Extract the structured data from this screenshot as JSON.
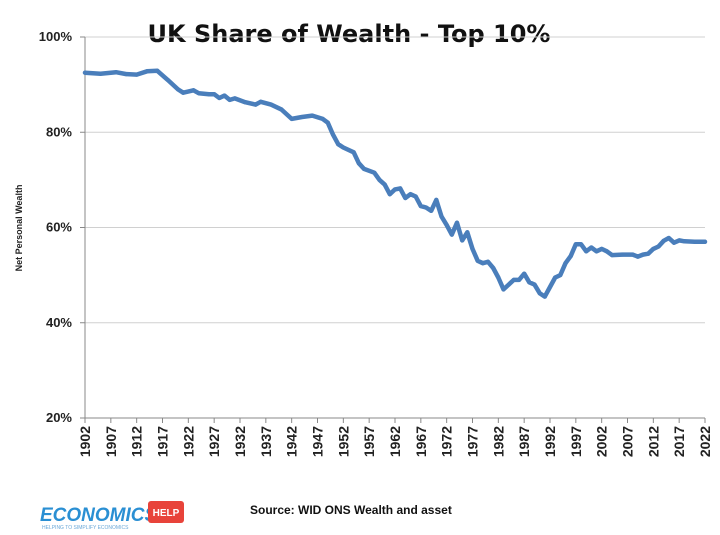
{
  "chart_data": {
    "type": "line",
    "title": "UK Share of Wealth - Top 10%",
    "ylabel": "Net Personal Wealth",
    "xlabel": "",
    "ylim": [
      20,
      100
    ],
    "xlim": [
      1902,
      2022
    ],
    "y_ticks": [
      "20%",
      "40%",
      "60%",
      "80%",
      "100%"
    ],
    "y_tick_values": [
      20,
      40,
      60,
      80,
      100
    ],
    "x_ticks": [
      "1902",
      "1907",
      "1912",
      "1917",
      "1922",
      "1927",
      "1932",
      "1937",
      "1942",
      "1947",
      "1952",
      "1957",
      "1962",
      "1967",
      "1972",
      "1977",
      "1982",
      "1987",
      "1992",
      "1997",
      "2002",
      "2007",
      "2012",
      "2017",
      "2022"
    ],
    "grid": "horizontal",
    "line_color": "#4a7ebb",
    "x": [
      1902,
      1905,
      1908,
      1910,
      1912,
      1914,
      1916,
      1918,
      1920,
      1921,
      1923,
      1924,
      1926,
      1927,
      1928,
      1929,
      1930,
      1931,
      1933,
      1935,
      1936,
      1938,
      1940,
      1942,
      1944,
      1946,
      1948,
      1949,
      1950,
      1951,
      1952,
      1954,
      1955,
      1956,
      1958,
      1959,
      1960,
      1961,
      1962,
      1963,
      1964,
      1965,
      1966,
      1967,
      1968,
      1969,
      1970,
      1971,
      1972,
      1973,
      1974,
      1975,
      1976,
      1977,
      1978,
      1979,
      1980,
      1981,
      1982,
      1983,
      1984,
      1985,
      1986,
      1987,
      1988,
      1989,
      1990,
      1991,
      1992,
      1993,
      1994,
      1995,
      1996,
      1997,
      1998,
      1999,
      2000,
      2001,
      2002,
      2003,
      2004,
      2006,
      2008,
      2009,
      2010,
      2011,
      2012,
      2013,
      2014,
      2015,
      2016,
      2017,
      2018,
      2020,
      2022
    ],
    "y": [
      92.5,
      92.3,
      92.6,
      92.2,
      92.1,
      92.8,
      92.9,
      91.0,
      89.0,
      88.3,
      88.8,
      88.2,
      88.0,
      88.0,
      87.2,
      87.7,
      86.8,
      87.1,
      86.3,
      85.8,
      86.4,
      85.8,
      84.8,
      82.8,
      83.2,
      83.5,
      82.8,
      82.0,
      79.5,
      77.5,
      76.8,
      75.8,
      73.5,
      72.3,
      71.5,
      70.0,
      69.0,
      67.0,
      68.0,
      68.2,
      66.2,
      67.0,
      66.5,
      64.5,
      64.2,
      63.5,
      65.8,
      62.3,
      60.5,
      58.5,
      61.0,
      57.3,
      59.0,
      55.5,
      53.0,
      52.5,
      52.8,
      51.5,
      49.5,
      47.0,
      48.0,
      49.0,
      49.0,
      50.3,
      48.5,
      48.0,
      46.2,
      45.5,
      47.5,
      49.5,
      50.0,
      52.5,
      54.0,
      56.5,
      56.5,
      55.0,
      55.8,
      55.0,
      55.5,
      55.0,
      54.2,
      54.3,
      54.3,
      53.9,
      54.3,
      54.5,
      55.5,
      56.0,
      57.2,
      57.8,
      56.8,
      57.3,
      57.1,
      57.0,
      57.0
    ]
  },
  "source": "Source: WID ONS Wealth and asset",
  "logo": {
    "main": "ECONOMICS",
    "badge": "HELP",
    "tagline": "HELPING TO SIMPLIFY ECONOMICS"
  }
}
